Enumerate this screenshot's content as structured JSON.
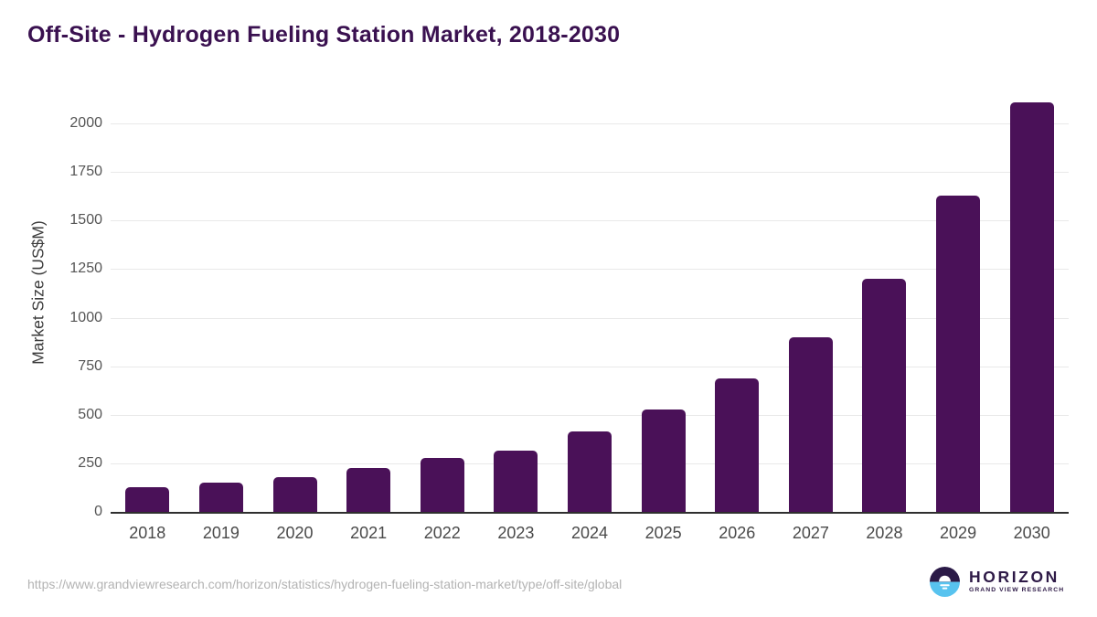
{
  "page": {
    "title": "Off-Site - Hydrogen Fueling Station Market, 2018-2030"
  },
  "chart_data": {
    "type": "bar",
    "title": "Off-Site - Hydrogen Fueling Station Market, 2018-2030",
    "categories": [
      "2018",
      "2019",
      "2020",
      "2021",
      "2022",
      "2023",
      "2024",
      "2025",
      "2026",
      "2027",
      "2028",
      "2029",
      "2030"
    ],
    "values": [
      125,
      152,
      181,
      228,
      277,
      317,
      412,
      526,
      687,
      899,
      1200,
      1629,
      2107
    ],
    "xlabel": "",
    "ylabel": "Market Size (US$M)",
    "yticks": [
      0,
      250,
      500,
      750,
      1000,
      1250,
      1500,
      1750,
      2000
    ],
    "ylim": [
      0,
      2127
    ],
    "grid": "horizontal",
    "legend": "none"
  },
  "footer": {
    "source_url": "https://www.grandviewresearch.com/horizon/statistics/hydrogen-fueling-station-market/type/off-site/global",
    "logo": {
      "name": "HORIZON",
      "subtitle": "GRAND VIEW RESEARCH"
    }
  },
  "colors": {
    "title": "#3a1150",
    "bar": "#4a1158",
    "gridline": "#e9e9e9",
    "axis_line": "#2f2f2f",
    "y_tick_label": "#555555",
    "x_tick_label": "#4a4a4a",
    "source_url": "#b3b3b3",
    "logo_purple": "#2e1a47",
    "logo_blue": "#58c3ef"
  }
}
